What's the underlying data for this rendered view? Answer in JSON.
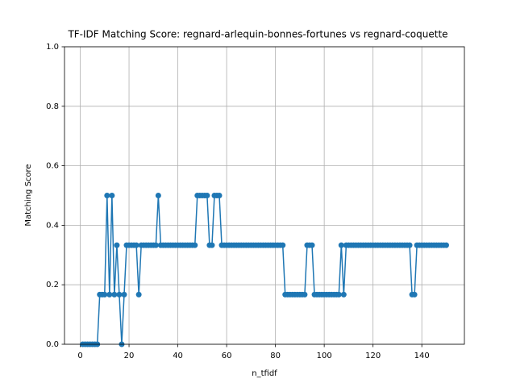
{
  "chart_data": {
    "type": "line",
    "title": "TF-IDF Matching Score: regnard-arlequin-bonnes-fortunes vs regnard-coquette",
    "x_label": "n_tfidf",
    "y_label": "Matching Score",
    "x": [
      1,
      2,
      3,
      4,
      5,
      6,
      7,
      8,
      9,
      10,
      11,
      12,
      13,
      14,
      15,
      16,
      17,
      18,
      19,
      20,
      21,
      22,
      23,
      24,
      25,
      26,
      27,
      28,
      29,
      30,
      31,
      32,
      33,
      34,
      35,
      36,
      37,
      38,
      39,
      40,
      41,
      42,
      43,
      44,
      45,
      46,
      47,
      48,
      49,
      50,
      51,
      52,
      53,
      54,
      55,
      56,
      57,
      58,
      59,
      60,
      61,
      62,
      63,
      64,
      65,
      66,
      67,
      68,
      69,
      70,
      71,
      72,
      73,
      74,
      75,
      76,
      77,
      78,
      79,
      80,
      81,
      82,
      83,
      84,
      85,
      86,
      87,
      88,
      89,
      90,
      91,
      92,
      93,
      94,
      95,
      96,
      97,
      98,
      99,
      100,
      101,
      102,
      103,
      104,
      105,
      106,
      107,
      108,
      109,
      110,
      111,
      112,
      113,
      114,
      115,
      116,
      117,
      118,
      119,
      120,
      121,
      122,
      123,
      124,
      125,
      126,
      127,
      128,
      129,
      130,
      131,
      132,
      133,
      134,
      135,
      136,
      137,
      138,
      139,
      140,
      141,
      142,
      143,
      144,
      145,
      146,
      147,
      148,
      149,
      150
    ],
    "series": [
      {
        "color": "#1f77b4",
        "values": [
          0,
          0,
          0,
          0,
          0,
          0,
          0,
          0.167,
          0.167,
          0.167,
          0.5,
          0.167,
          0.5,
          0.167,
          0.333,
          0.167,
          0,
          0.167,
          0.333,
          0.333,
          0.333,
          0.333,
          0.333,
          0.167,
          0.333,
          0.333,
          0.333,
          0.333,
          0.333,
          0.333,
          0.333,
          0.5,
          0.333,
          0.333,
          0.333,
          0.333,
          0.333,
          0.333,
          0.333,
          0.333,
          0.333,
          0.333,
          0.333,
          0.333,
          0.333,
          0.333,
          0.333,
          0.5,
          0.5,
          0.5,
          0.5,
          0.5,
          0.333,
          0.333,
          0.5,
          0.5,
          0.5,
          0.333,
          0.333,
          0.333,
          0.333,
          0.333,
          0.333,
          0.333,
          0.333,
          0.333,
          0.333,
          0.333,
          0.333,
          0.333,
          0.333,
          0.333,
          0.333,
          0.333,
          0.333,
          0.333,
          0.333,
          0.333,
          0.333,
          0.333,
          0.333,
          0.333,
          0.333,
          0.167,
          0.167,
          0.167,
          0.167,
          0.167,
          0.167,
          0.167,
          0.167,
          0.167,
          0.333,
          0.333,
          0.333,
          0.167,
          0.167,
          0.167,
          0.167,
          0.167,
          0.167,
          0.167,
          0.167,
          0.167,
          0.167,
          0.167,
          0.333,
          0.167,
          0.333,
          0.333,
          0.333,
          0.333,
          0.333,
          0.333,
          0.333,
          0.333,
          0.333,
          0.333,
          0.333,
          0.333,
          0.333,
          0.333,
          0.333,
          0.333,
          0.333,
          0.333,
          0.333,
          0.333,
          0.333,
          0.333,
          0.333,
          0.333,
          0.333,
          0.333,
          0.333,
          0.167,
          0.167,
          0.333,
          0.333,
          0.333,
          0.333,
          0.333,
          0.333,
          0.333,
          0.333,
          0.333,
          0.333,
          0.333,
          0.333,
          0.333
        ]
      }
    ],
    "xlim": [
      -6.45,
      157.45
    ],
    "ylim": [
      0,
      1
    ],
    "xticks": [
      0,
      20,
      40,
      60,
      80,
      100,
      120,
      140
    ],
    "yticks": [
      {
        "value": 0,
        "label": "0.0"
      },
      {
        "value": 0.2,
        "label": "0.2"
      },
      {
        "value": 0.4,
        "label": "0.4"
      },
      {
        "value": 0.6,
        "label": "0.6"
      },
      {
        "value": 0.8,
        "label": "0.8"
      },
      {
        "value": 1,
        "label": "1.0"
      }
    ],
    "grid": true
  }
}
